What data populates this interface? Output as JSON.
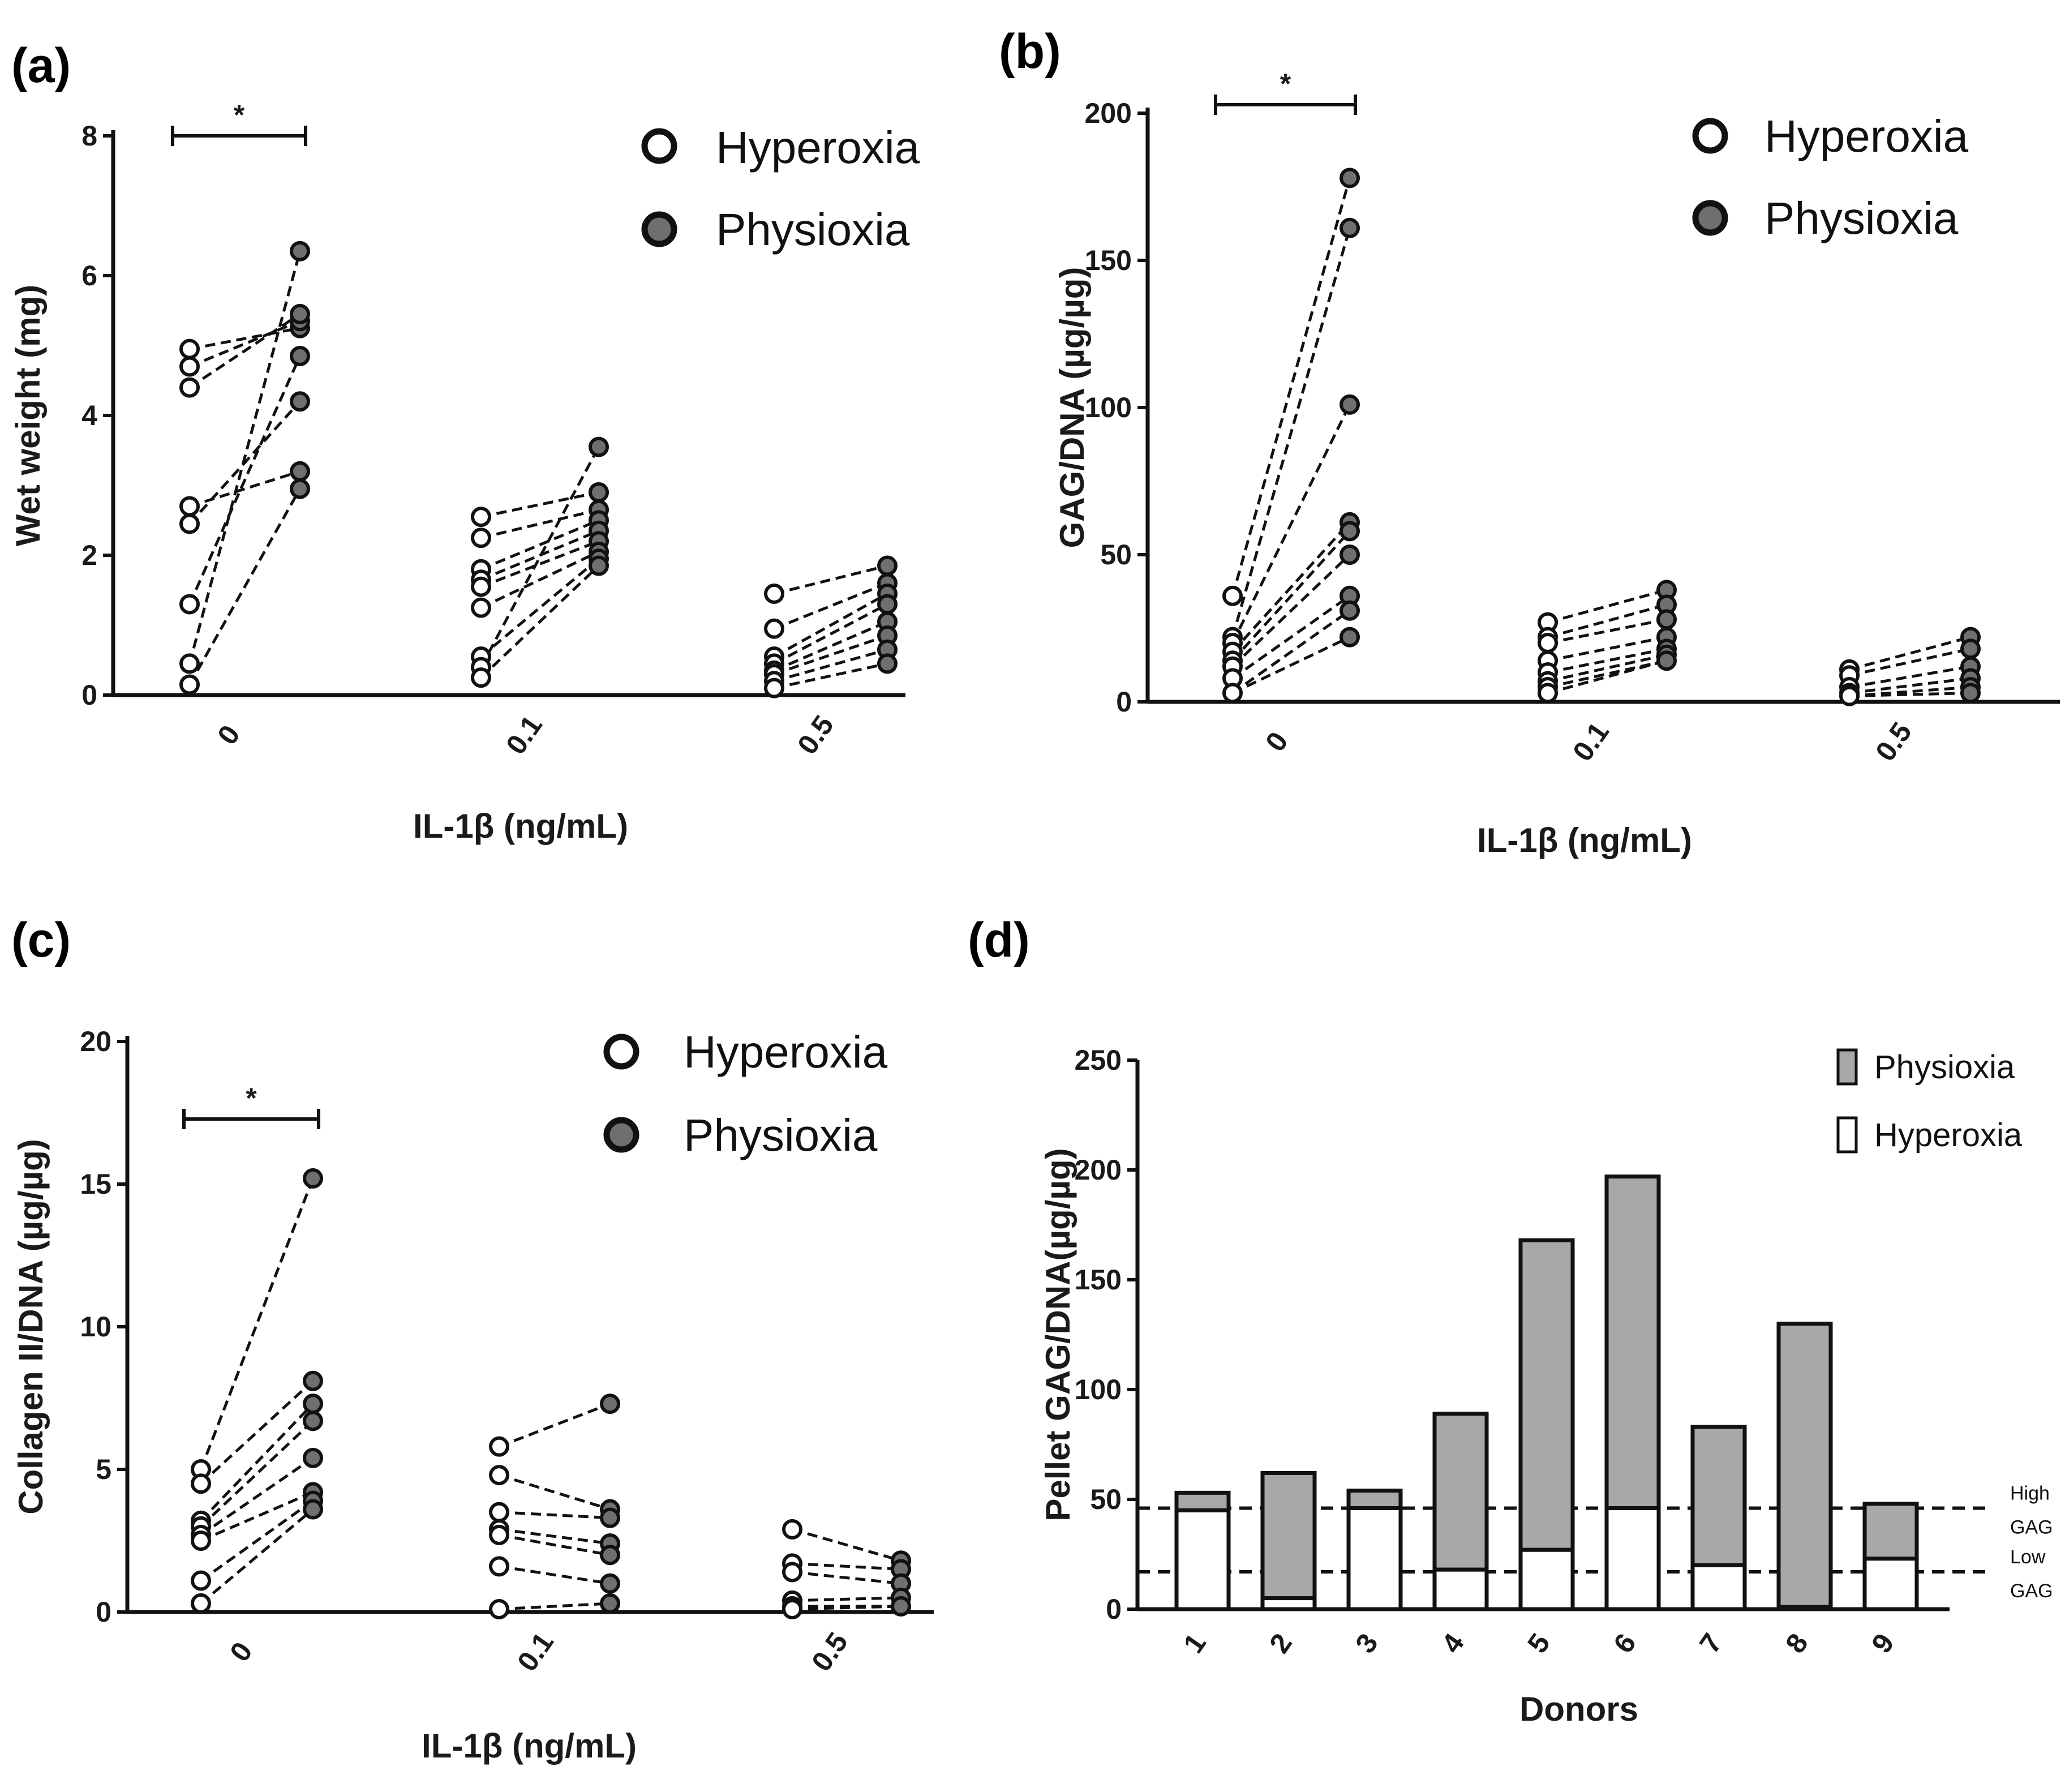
{
  "chart_data": [
    {
      "panel": "(a)",
      "type": "scatter",
      "xlabel": "IL-1β (ng/mL)",
      "ylabel": "Wet weight (mg)",
      "ylim": [
        0,
        8
      ],
      "yticks": [
        "0",
        "2",
        "4",
        "6",
        "8"
      ],
      "categories": [
        "0",
        "0.1",
        "0.5"
      ],
      "legend": [
        "Hyperoxia",
        "Physioxia"
      ],
      "legend_position": "top-right",
      "significance": [
        {
          "category": "0",
          "label": "*"
        }
      ],
      "paired_series": [
        {
          "category": "0",
          "hyperoxia": [
            4.95,
            4.7,
            4.4,
            2.7,
            2.45,
            1.3,
            0.45,
            0.15
          ],
          "physioxia": [
            5.25,
            5.35,
            5.45,
            3.2,
            4.2,
            4.85,
            6.35,
            2.95
          ]
        },
        {
          "category": "0.1",
          "hyperoxia": [
            2.55,
            2.25,
            1.8,
            1.65,
            1.55,
            1.25,
            0.55,
            0.4,
            0.25
          ],
          "physioxia": [
            2.9,
            2.65,
            2.5,
            2.35,
            2.2,
            2.05,
            1.95,
            3.55,
            1.85
          ]
        },
        {
          "category": "0.5",
          "hyperoxia": [
            1.45,
            0.95,
            0.55,
            0.45,
            0.35,
            0.3,
            0.2,
            0.1
          ],
          "physioxia": [
            1.85,
            1.6,
            1.45,
            1.3,
            1.05,
            0.85,
            0.65,
            0.45
          ]
        }
      ]
    },
    {
      "panel": "(b)",
      "type": "scatter",
      "xlabel": "IL-1β  (ng/mL)",
      "ylabel": "GAG/DNA (µg/µg)",
      "ylim": [
        0,
        200
      ],
      "yticks": [
        "0",
        "50",
        "100",
        "150",
        "200"
      ],
      "categories": [
        "0",
        "0.1",
        "0.5"
      ],
      "legend": [
        "Hyperoxia",
        "Physioxia"
      ],
      "legend_position": "top-right",
      "significance": [
        {
          "category": "0",
          "label": "*"
        }
      ],
      "paired_series": [
        {
          "category": "0",
          "hyperoxia": [
            36,
            22,
            20,
            17,
            14,
            12,
            8,
            3
          ],
          "physioxia": [
            178,
            161,
            101,
            61,
            58,
            50,
            36,
            31,
            22
          ]
        },
        {
          "category": "0.1",
          "hyperoxia": [
            27,
            22,
            20,
            14,
            10,
            7,
            5,
            3
          ],
          "physioxia": [
            38,
            33,
            28,
            22,
            18,
            16,
            14
          ]
        },
        {
          "category": "0.5",
          "hyperoxia": [
            11,
            9,
            5,
            3,
            2
          ],
          "physioxia": [
            22,
            18,
            12,
            8,
            5,
            3
          ]
        }
      ]
    },
    {
      "panel": "(c)",
      "type": "scatter",
      "xlabel": "IL-1β (ng/mL)",
      "ylabel": "Collagen II/DNA (µg/µg)",
      "ylim": [
        0,
        20
      ],
      "yticks": [
        "0",
        "5",
        "10",
        "15",
        "20"
      ],
      "categories": [
        "0",
        "0.1",
        "0.5"
      ],
      "legend": [
        "Hyperoxia",
        "Physioxia"
      ],
      "legend_position": "top-right",
      "significance": [
        {
          "category": "0",
          "label": "*"
        }
      ],
      "paired_series": [
        {
          "category": "0",
          "hyperoxia": [
            5.0,
            4.5,
            3.2,
            3.0,
            2.7,
            2.5,
            1.1,
            0.3
          ],
          "physioxia": [
            15.2,
            8.1,
            7.3,
            6.7,
            5.4,
            4.2,
            3.9,
            3.6
          ]
        },
        {
          "category": "0.1",
          "hyperoxia": [
            5.8,
            4.8,
            3.5,
            2.9,
            2.7,
            1.6,
            0.1
          ],
          "physioxia": [
            7.3,
            3.6,
            3.3,
            2.4,
            2.0,
            1.0,
            0.3
          ]
        },
        {
          "category": "0.5",
          "hyperoxia": [
            2.9,
            1.7,
            1.4,
            0.4,
            0.2,
            0.1
          ],
          "physioxia": [
            1.8,
            1.5,
            1.0,
            0.5,
            0.2
          ]
        }
      ]
    },
    {
      "panel": "(d)",
      "type": "bar",
      "stacked": true,
      "xlabel": "Donors",
      "ylabel": "Pellet GAG/DNA(µg/µg)",
      "ylim": [
        0,
        250
      ],
      "yticks": [
        "0",
        "50",
        "100",
        "150",
        "200",
        "250"
      ],
      "categories": [
        "1",
        "2",
        "3",
        "4",
        "5",
        "6",
        "7",
        "8",
        "9"
      ],
      "series": [
        {
          "name": "Hyperoxia",
          "values": [
            45,
            5,
            46,
            18,
            27,
            46,
            20,
            1,
            23
          ]
        },
        {
          "name": "Physioxia",
          "values": [
            8,
            57,
            8,
            71,
            141,
            151,
            63,
            129,
            25
          ]
        }
      ],
      "legend_position": "top-right",
      "reference_lines": [
        {
          "value": 46,
          "label": [
            "High",
            "GAG"
          ]
        },
        {
          "value": 17,
          "label": [
            "Low",
            "GAG"
          ]
        }
      ]
    }
  ],
  "colors": {
    "physioxia_marker": "#6f6f6f",
    "hyperoxia_marker": "#ffffff",
    "physioxia_bar": "#a8a8a8",
    "hyperoxia_bar": "#ffffff",
    "ink": "#111111"
  }
}
